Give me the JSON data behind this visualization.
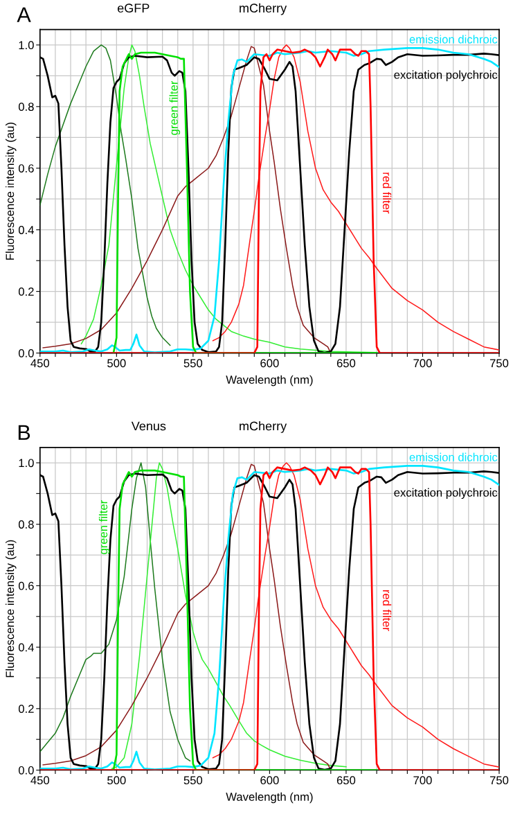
{
  "chart_data": [
    {
      "type": "line",
      "title": "A",
      "xlabel": "Wavelength (nm)",
      "ylabel": "Fluorescence intensity (au)",
      "xlim": [
        450,
        750
      ],
      "ylim": [
        0,
        1.05
      ],
      "grid": true,
      "xticks": [
        450,
        {
          "value": 460,
          "label": null
        },
        {
          "value": 470,
          "label": null
        },
        {
          "value": 480,
          "label": null
        },
        {
          "value": 490,
          "label": null
        },
        500,
        {
          "value": 510,
          "label": null
        },
        {
          "value": 520,
          "label": null
        },
        {
          "value": 530,
          "label": null
        },
        {
          "value": 540,
          "label": null
        },
        550,
        {
          "value": 560,
          "label": null
        },
        {
          "value": 570,
          "label": null
        },
        {
          "value": 580,
          "label": null
        },
        {
          "value": 590,
          "label": null
        },
        600,
        {
          "value": 610,
          "label": null
        },
        {
          "value": 620,
          "label": null
        },
        {
          "value": 630,
          "label": null
        },
        {
          "value": 640,
          "label": null
        },
        650,
        {
          "value": 660,
          "label": null
        },
        {
          "value": 670,
          "label": null
        },
        {
          "value": 680,
          "label": null
        },
        {
          "value": 690,
          "label": null
        },
        700,
        {
          "value": 710,
          "label": null
        },
        {
          "value": 720,
          "label": null
        },
        {
          "value": 730,
          "label": null
        },
        {
          "value": 740,
          "label": null
        },
        750
      ],
      "yticks": [
        {
          "value": 0,
          "label": "0.0"
        },
        {
          "value": 0.1,
          "label": null
        },
        {
          "value": 0.2,
          "label": "0.2"
        },
        {
          "value": 0.3,
          "label": null
        },
        {
          "value": 0.4,
          "label": "0.4"
        },
        {
          "value": 0.5,
          "label": null
        },
        {
          "value": 0.6,
          "label": "0.6"
        },
        {
          "value": 0.7,
          "label": null
        },
        {
          "value": 0.8,
          "label": "0.8"
        },
        {
          "value": 0.9,
          "label": null
        },
        {
          "value": 1.0,
          "label": "1.0"
        }
      ],
      "annotations": [
        "eGFP",
        "mCherry"
      ],
      "series": [
        {
          "name": "excitation polychroic",
          "color": "#000000",
          "x": [
            450,
            452,
            455,
            458,
            460,
            462,
            464,
            466,
            468,
            470,
            472,
            476,
            480,
            483,
            486,
            488,
            490,
            492,
            494,
            496,
            498,
            500,
            502,
            505,
            508,
            512,
            520,
            530,
            533,
            536,
            538,
            541,
            543,
            545,
            547,
            549,
            551,
            553,
            556,
            560,
            565,
            567,
            569,
            571,
            573,
            575,
            577,
            580,
            585,
            590,
            593,
            597,
            600,
            605,
            610,
            613,
            615,
            617,
            620,
            623,
            626,
            629,
            632,
            636,
            640,
            643,
            646,
            649,
            652,
            655,
            658,
            662,
            665,
            670,
            673,
            676,
            680,
            684,
            690,
            700,
            710,
            720,
            730,
            740,
            745,
            750
          ],
          "values": [
            0.96,
            0.955,
            0.9,
            0.83,
            0.835,
            0.81,
            0.6,
            0.35,
            0.15,
            0.04,
            0.02,
            0.015,
            0.013,
            0.005,
            0.005,
            0.02,
            0.1,
            0.3,
            0.55,
            0.75,
            0.86,
            0.88,
            0.89,
            0.94,
            0.96,
            0.965,
            0.96,
            0.962,
            0.95,
            0.91,
            0.9,
            0.915,
            0.91,
            0.85,
            0.6,
            0.3,
            0.1,
            0.03,
            0.01,
            0.003,
            0.005,
            0.02,
            0.1,
            0.35,
            0.65,
            0.86,
            0.92,
            0.925,
            0.935,
            0.96,
            0.955,
            0.92,
            0.89,
            0.885,
            0.92,
            0.945,
            0.93,
            0.85,
            0.6,
            0.35,
            0.15,
            0.04,
            0.005,
            0.001,
            0.005,
            0.03,
            0.15,
            0.4,
            0.65,
            0.85,
            0.92,
            0.935,
            0.94,
            0.955,
            0.953,
            0.935,
            0.945,
            0.96,
            0.97,
            0.965,
            0.966,
            0.968,
            0.968,
            0.972,
            0.97,
            0.967
          ]
        },
        {
          "name": "emission dichroic",
          "color": "#00e5ff",
          "x": [
            450,
            460,
            465,
            470,
            478,
            482,
            486,
            490,
            494,
            497,
            499,
            502,
            506,
            509,
            511,
            513,
            515,
            518,
            525,
            535,
            540,
            545,
            550,
            555,
            560,
            564,
            567,
            570,
            573,
            576,
            579,
            582,
            585,
            590,
            600,
            605,
            610,
            620,
            625,
            630,
            640,
            650,
            655,
            660,
            665,
            675,
            690,
            700,
            710,
            720,
            730,
            740,
            745,
            750
          ],
          "values": [
            0.005,
            0.005,
            0.008,
            0.003,
            0.005,
            0.012,
            0.008,
            0.005,
            0.012,
            0.025,
            0.02,
            0.008,
            0.01,
            0.01,
            0.03,
            0.06,
            0.025,
            0.005,
            0.002,
            0.005,
            0.012,
            0.012,
            0.01,
            0.015,
            0.04,
            0.12,
            0.3,
            0.55,
            0.75,
            0.9,
            0.95,
            0.953,
            0.945,
            0.97,
            0.965,
            0.975,
            0.97,
            0.975,
            0.98,
            0.975,
            0.98,
            0.975,
            0.965,
            0.97,
            0.98,
            0.985,
            0.99,
            0.99,
            0.985,
            0.975,
            0.97,
            0.955,
            0.945,
            0.928
          ]
        },
        {
          "name": "green filter",
          "color": "#00e000",
          "x": [
            498,
            500,
            501,
            502,
            504,
            507,
            508,
            510,
            512,
            516,
            520,
            525,
            530,
            535,
            540,
            542,
            544,
            546,
            548,
            550,
            552,
            670
          ],
          "values": [
            0.0,
            0.05,
            0.5,
            0.85,
            0.93,
            0.96,
            0.97,
            0.955,
            0.97,
            0.975,
            0.975,
            0.975,
            0.97,
            0.965,
            0.96,
            0.955,
            0.955,
            0.6,
            0.2,
            0.02,
            0.0,
            0.0
          ]
        },
        {
          "name": "red filter",
          "color": "#ff0000",
          "x": [
            450,
            590,
            592,
            593,
            594,
            596,
            598,
            600,
            602,
            605,
            610,
            615,
            620,
            623,
            627,
            630,
            633,
            636,
            638,
            641,
            643,
            646,
            650,
            653,
            656,
            658,
            660,
            663,
            665,
            666,
            668,
            670,
            672,
            750
          ],
          "values": [
            0,
            0,
            0.02,
            0.5,
            0.85,
            0.96,
            0.97,
            0.95,
            0.97,
            0.985,
            0.98,
            0.975,
            0.978,
            0.985,
            0.975,
            0.96,
            0.93,
            0.96,
            0.985,
            0.97,
            0.95,
            0.985,
            0.985,
            0.985,
            0.97,
            0.965,
            0.98,
            0.98,
            0.97,
            0.8,
            0.3,
            0.02,
            0,
            0
          ]
        },
        {
          "color": "#1e7b1e",
          "x": [
            450,
            455,
            460,
            465,
            470,
            475,
            480,
            485,
            490,
            493,
            496,
            500,
            503,
            506,
            510,
            514,
            517,
            520,
            523,
            526,
            530,
            535
          ],
          "values": [
            0.48,
            0.58,
            0.67,
            0.74,
            0.81,
            0.87,
            0.93,
            0.98,
            1.0,
            0.99,
            0.95,
            0.83,
            0.72,
            0.63,
            0.5,
            0.34,
            0.26,
            0.18,
            0.12,
            0.08,
            0.05,
            0.025
          ]
        },
        {
          "color": "#33ee33",
          "x": [
            477,
            480,
            485,
            490,
            495,
            500,
            503,
            505,
            508,
            510,
            512,
            515,
            518,
            522,
            528,
            535,
            540,
            545,
            550,
            555,
            560,
            565,
            570,
            575,
            583,
            590,
            600,
            610,
            620,
            640,
            670
          ],
          "values": [
            0.03,
            0.055,
            0.11,
            0.22,
            0.35,
            0.61,
            0.76,
            0.86,
            0.96,
            1.0,
            0.98,
            0.9,
            0.8,
            0.68,
            0.55,
            0.4,
            0.33,
            0.27,
            0.22,
            0.18,
            0.14,
            0.11,
            0.09,
            0.07,
            0.055,
            0.045,
            0.035,
            0.02,
            0.013,
            0.005,
            0.002
          ]
        },
        {
          "color": "#8b1a1a",
          "x": [
            452,
            460,
            470,
            480,
            490,
            500,
            510,
            520,
            530,
            540,
            545,
            550,
            560,
            565,
            570,
            575,
            580,
            585,
            588,
            590,
            592,
            596,
            600,
            603,
            607,
            611,
            615,
            618,
            622,
            629,
            635,
            638,
            640
          ],
          "values": [
            0.017,
            0.022,
            0.03,
            0.047,
            0.076,
            0.13,
            0.21,
            0.3,
            0.4,
            0.51,
            0.54,
            0.56,
            0.6,
            0.64,
            0.7,
            0.77,
            0.86,
            0.95,
            0.995,
            0.99,
            0.95,
            0.87,
            0.72,
            0.62,
            0.47,
            0.34,
            0.22,
            0.15,
            0.09,
            0.05,
            0.03,
            0.02,
            0.0
          ]
        },
        {
          "color": "#ff1a1a",
          "x": [
            563,
            567,
            571,
            575,
            580,
            583,
            587,
            590,
            593,
            597,
            600,
            603,
            606,
            609,
            611,
            613,
            616,
            620,
            625,
            630,
            635,
            640,
            645,
            650,
            655,
            660,
            665,
            670,
            680,
            690,
            700,
            710,
            720,
            730,
            740,
            750
          ],
          "values": [
            0.04,
            0.05,
            0.07,
            0.1,
            0.16,
            0.22,
            0.36,
            0.46,
            0.57,
            0.7,
            0.79,
            0.89,
            0.96,
            0.99,
            1.0,
            0.99,
            0.96,
            0.88,
            0.72,
            0.6,
            0.53,
            0.49,
            0.46,
            0.42,
            0.38,
            0.34,
            0.31,
            0.275,
            0.21,
            0.17,
            0.14,
            0.1,
            0.07,
            0.045,
            0.02,
            0.01
          ]
        }
      ]
    },
    {
      "type": "line",
      "title": "B",
      "xlabel": "Wavelength (nm)",
      "ylabel": "Fluorescence intensity (au)",
      "xlim": [
        450,
        750
      ],
      "ylim": [
        0,
        1.05
      ],
      "grid": true,
      "xticks": [
        450,
        {
          "value": 460,
          "label": null
        },
        {
          "value": 470,
          "label": null
        },
        {
          "value": 480,
          "label": null
        },
        {
          "value": 490,
          "label": null
        },
        500,
        {
          "value": 510,
          "label": null
        },
        {
          "value": 520,
          "label": null
        },
        {
          "value": 530,
          "label": null
        },
        {
          "value": 540,
          "label": null
        },
        550,
        {
          "value": 560,
          "label": null
        },
        {
          "value": 570,
          "label": null
        },
        {
          "value": 580,
          "label": null
        },
        {
          "value": 590,
          "label": null
        },
        600,
        {
          "value": 610,
          "label": null
        },
        {
          "value": 620,
          "label": null
        },
        {
          "value": 630,
          "label": null
        },
        {
          "value": 640,
          "label": null
        },
        650,
        {
          "value": 660,
          "label": null
        },
        {
          "value": 670,
          "label": null
        },
        {
          "value": 680,
          "label": null
        },
        {
          "value": 690,
          "label": null
        },
        700,
        {
          "value": 710,
          "label": null
        },
        {
          "value": 720,
          "label": null
        },
        {
          "value": 730,
          "label": null
        },
        {
          "value": 740,
          "label": null
        },
        750
      ],
      "yticks": [
        {
          "value": 0,
          "label": "0.0"
        },
        {
          "value": 0.1,
          "label": null
        },
        {
          "value": 0.2,
          "label": "0.2"
        },
        {
          "value": 0.3,
          "label": null
        },
        {
          "value": 0.4,
          "label": "0.4"
        },
        {
          "value": 0.5,
          "label": null
        },
        {
          "value": 0.6,
          "label": "0.6"
        },
        {
          "value": 0.7,
          "label": null
        },
        {
          "value": 0.8,
          "label": "0.8"
        },
        {
          "value": 0.9,
          "label": null
        },
        {
          "value": 1.0,
          "label": "1.0"
        }
      ],
      "annotations": [
        "Venus",
        "mCherry"
      ],
      "series": [
        {
          "name": "excitation polychroic",
          "color": "#000000",
          "x": [
            450,
            452,
            455,
            458,
            460,
            462,
            464,
            466,
            468,
            470,
            472,
            476,
            480,
            483,
            486,
            488,
            490,
            492,
            494,
            496,
            498,
            500,
            502,
            505,
            508,
            512,
            520,
            530,
            533,
            536,
            538,
            541,
            543,
            545,
            547,
            549,
            551,
            553,
            556,
            560,
            565,
            567,
            569,
            571,
            573,
            575,
            577,
            580,
            585,
            590,
            593,
            597,
            600,
            605,
            610,
            613,
            615,
            617,
            620,
            623,
            626,
            629,
            632,
            636,
            640,
            643,
            646,
            649,
            652,
            655,
            658,
            662,
            665,
            670,
            673,
            676,
            680,
            684,
            690,
            700,
            710,
            720,
            730,
            740,
            745,
            750
          ],
          "values": [
            0.96,
            0.955,
            0.9,
            0.83,
            0.835,
            0.81,
            0.6,
            0.35,
            0.15,
            0.04,
            0.02,
            0.015,
            0.013,
            0.005,
            0.005,
            0.02,
            0.1,
            0.3,
            0.55,
            0.75,
            0.86,
            0.88,
            0.89,
            0.94,
            0.96,
            0.965,
            0.96,
            0.962,
            0.95,
            0.91,
            0.9,
            0.915,
            0.91,
            0.85,
            0.6,
            0.3,
            0.1,
            0.03,
            0.01,
            0.003,
            0.005,
            0.02,
            0.1,
            0.35,
            0.65,
            0.86,
            0.92,
            0.925,
            0.935,
            0.96,
            0.955,
            0.92,
            0.89,
            0.885,
            0.92,
            0.945,
            0.93,
            0.85,
            0.6,
            0.35,
            0.15,
            0.04,
            0.005,
            0.001,
            0.005,
            0.03,
            0.15,
            0.4,
            0.65,
            0.85,
            0.92,
            0.935,
            0.94,
            0.955,
            0.953,
            0.935,
            0.945,
            0.96,
            0.97,
            0.965,
            0.966,
            0.968,
            0.968,
            0.972,
            0.97,
            0.967
          ]
        },
        {
          "name": "emission dichroic",
          "color": "#00e5ff",
          "x": [
            450,
            460,
            465,
            470,
            478,
            482,
            486,
            490,
            494,
            497,
            499,
            502,
            506,
            509,
            511,
            513,
            515,
            518,
            525,
            535,
            540,
            545,
            550,
            555,
            560,
            564,
            567,
            570,
            573,
            576,
            579,
            582,
            585,
            590,
            600,
            605,
            610,
            620,
            625,
            630,
            640,
            650,
            655,
            660,
            665,
            675,
            690,
            700,
            710,
            720,
            730,
            740,
            745,
            750
          ],
          "values": [
            0.005,
            0.005,
            0.008,
            0.003,
            0.005,
            0.012,
            0.008,
            0.005,
            0.012,
            0.025,
            0.02,
            0.008,
            0.01,
            0.01,
            0.03,
            0.06,
            0.025,
            0.005,
            0.002,
            0.005,
            0.012,
            0.012,
            0.01,
            0.015,
            0.04,
            0.12,
            0.3,
            0.55,
            0.75,
            0.9,
            0.95,
            0.953,
            0.945,
            0.97,
            0.965,
            0.975,
            0.97,
            0.975,
            0.98,
            0.975,
            0.98,
            0.975,
            0.965,
            0.97,
            0.98,
            0.985,
            0.99,
            0.99,
            0.985,
            0.975,
            0.97,
            0.955,
            0.945,
            0.928
          ]
        },
        {
          "name": "green filter",
          "color": "#00e000",
          "x": [
            498,
            500,
            501,
            502,
            504,
            507,
            508,
            510,
            512,
            516,
            520,
            525,
            530,
            535,
            540,
            542,
            544,
            546,
            548,
            550,
            552,
            670
          ],
          "values": [
            0.0,
            0.05,
            0.5,
            0.85,
            0.93,
            0.96,
            0.97,
            0.955,
            0.97,
            0.975,
            0.975,
            0.975,
            0.97,
            0.965,
            0.96,
            0.955,
            0.955,
            0.6,
            0.2,
            0.02,
            0.0,
            0.0
          ]
        },
        {
          "name": "red filter",
          "color": "#ff0000",
          "x": [
            450,
            590,
            592,
            593,
            594,
            596,
            598,
            600,
            602,
            605,
            610,
            615,
            620,
            623,
            627,
            630,
            633,
            636,
            638,
            641,
            643,
            646,
            650,
            653,
            656,
            658,
            660,
            663,
            665,
            666,
            668,
            670,
            672,
            750
          ],
          "values": [
            0,
            0,
            0.02,
            0.5,
            0.85,
            0.96,
            0.97,
            0.95,
            0.97,
            0.985,
            0.98,
            0.975,
            0.978,
            0.985,
            0.975,
            0.96,
            0.93,
            0.96,
            0.985,
            0.97,
            0.95,
            0.985,
            0.985,
            0.985,
            0.97,
            0.965,
            0.98,
            0.98,
            0.97,
            0.8,
            0.3,
            0.02,
            0,
            0
          ]
        },
        {
          "color": "#1e7b1e",
          "x": [
            450,
            455,
            460,
            465,
            470,
            475,
            480,
            483,
            485,
            490,
            495,
            500,
            505,
            510,
            513,
            516,
            519,
            522,
            525,
            530,
            535,
            540,
            545,
            548
          ],
          "values": [
            0.06,
            0.09,
            0.12,
            0.17,
            0.24,
            0.3,
            0.36,
            0.37,
            0.38,
            0.38,
            0.41,
            0.49,
            0.63,
            0.85,
            0.95,
            1.0,
            0.92,
            0.75,
            0.59,
            0.36,
            0.19,
            0.1,
            0.04,
            0.03
          ]
        },
        {
          "color": "#33ee33",
          "x": [
            497,
            500,
            505,
            510,
            515,
            519,
            523,
            526,
            528,
            530,
            533,
            537,
            540,
            545,
            548,
            550,
            553,
            556,
            560,
            565,
            570,
            574,
            580,
            585,
            590,
            595,
            600,
            610,
            620,
            630,
            640,
            650
          ],
          "values": [
            0.005,
            0.01,
            0.04,
            0.15,
            0.37,
            0.58,
            0.79,
            0.95,
            1.0,
            0.98,
            0.92,
            0.8,
            0.72,
            0.57,
            0.5,
            0.45,
            0.4,
            0.36,
            0.33,
            0.285,
            0.24,
            0.21,
            0.16,
            0.12,
            0.095,
            0.08,
            0.066,
            0.045,
            0.032,
            0.022,
            0.015,
            0.011
          ]
        },
        {
          "color": "#8b1a1a",
          "x": [
            452,
            460,
            470,
            480,
            490,
            500,
            510,
            520,
            530,
            540,
            545,
            550,
            560,
            565,
            570,
            575,
            580,
            585,
            588,
            590,
            592,
            596,
            600,
            603,
            607,
            611,
            615,
            618,
            622,
            629,
            635,
            638,
            640
          ],
          "values": [
            0.017,
            0.022,
            0.03,
            0.047,
            0.076,
            0.13,
            0.21,
            0.3,
            0.4,
            0.51,
            0.54,
            0.56,
            0.6,
            0.64,
            0.7,
            0.77,
            0.86,
            0.95,
            0.995,
            0.99,
            0.95,
            0.87,
            0.72,
            0.62,
            0.47,
            0.34,
            0.22,
            0.15,
            0.09,
            0.05,
            0.03,
            0.02,
            0.0
          ]
        },
        {
          "color": "#ff1a1a",
          "x": [
            563,
            567,
            571,
            575,
            580,
            583,
            587,
            590,
            593,
            597,
            600,
            603,
            606,
            609,
            611,
            613,
            616,
            620,
            625,
            630,
            635,
            640,
            645,
            650,
            655,
            660,
            665,
            670,
            680,
            690,
            700,
            710,
            720,
            730,
            740,
            750
          ],
          "values": [
            0.04,
            0.05,
            0.07,
            0.1,
            0.16,
            0.22,
            0.36,
            0.46,
            0.57,
            0.7,
            0.79,
            0.89,
            0.96,
            0.99,
            1.0,
            0.99,
            0.96,
            0.88,
            0.72,
            0.6,
            0.53,
            0.49,
            0.46,
            0.42,
            0.38,
            0.34,
            0.31,
            0.275,
            0.21,
            0.17,
            0.14,
            0.1,
            0.07,
            0.045,
            0.02,
            0.01
          ]
        }
      ]
    }
  ]
}
